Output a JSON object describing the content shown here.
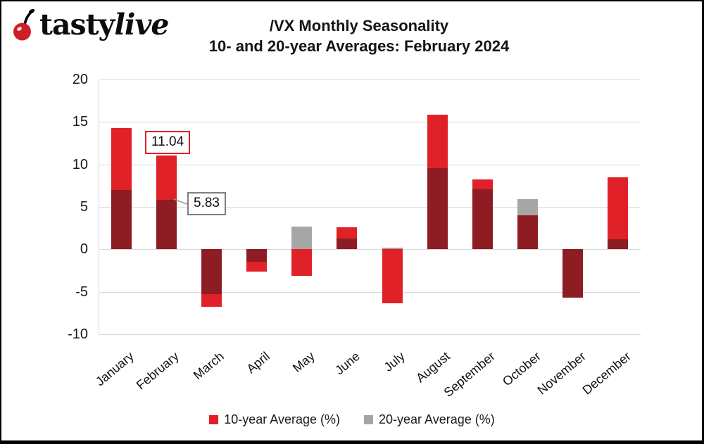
{
  "header": {
    "logo_word_regular": "tasty",
    "logo_word_italic": "live",
    "title_line1": "/VX Monthly Seasonality",
    "title_line2": "10- and 20-year Averages: February 2024"
  },
  "chart_data": {
    "type": "bar",
    "title": "/VX Monthly Seasonality",
    "subtitle": "10- and 20-year Averages: February 2024",
    "categories": [
      "January",
      "February",
      "March",
      "April",
      "May",
      "June",
      "July",
      "August",
      "September",
      "October",
      "November",
      "December"
    ],
    "series": [
      {
        "name": "10-year Average (%)",
        "color": "#e02128",
        "values": [
          14.3,
          11.04,
          -6.8,
          -2.6,
          -3.1,
          2.6,
          -6.4,
          15.9,
          8.2,
          4.0,
          -5.7,
          8.5
        ]
      },
      {
        "name": "20-year Average (%)",
        "color": "#a6a6a6",
        "values": [
          7.0,
          5.83,
          -5.3,
          -1.5,
          2.7,
          1.3,
          0.2,
          9.6,
          7.1,
          5.9,
          -5.7,
          1.2
        ]
      }
    ],
    "overlap_color": "#8e1c23",
    "ylim": [
      -10,
      20
    ],
    "yticks": [
      20,
      15,
      10,
      5,
      0,
      -5,
      -10
    ],
    "grid": true,
    "gridline_color": "#d9d9d9",
    "legend_position": "bottom",
    "annotations": [
      {
        "text": "11.04",
        "month": "February",
        "series": "10-year Average (%)"
      },
      {
        "text": "5.83",
        "month": "February",
        "series": "20-year Average (%)"
      }
    ]
  }
}
